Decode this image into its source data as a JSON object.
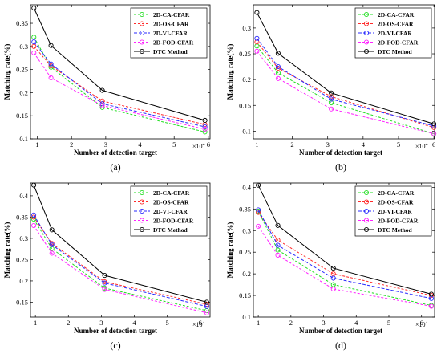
{
  "chart_data": [
    {
      "type": "line",
      "panel_label": "(a)",
      "xlabel": "Number of detection target",
      "ylabel": "Matching rate(%)",
      "x_multiplier": "×10",
      "x_multiplier_exp": "4",
      "xlim": [
        0.8,
        6.05
      ],
      "ylim": [
        0.1,
        0.39
      ],
      "xticks": [
        1,
        2,
        3,
        4,
        5,
        6
      ],
      "yticks": [
        0.1,
        0.15,
        0.2,
        0.25,
        0.3,
        0.35
      ],
      "ytick_labels": [
        "0.1",
        "0.15",
        "0.2",
        "0.25",
        "0.3",
        "0.35"
      ],
      "legend_position": "top-right",
      "series": [
        {
          "name": "2D-CA-CFAR",
          "color": "#22dd22",
          "dash": "3,2",
          "x": [
            0.9,
            1.4,
            2.9,
            5.9
          ],
          "y": [
            0.32,
            0.255,
            0.168,
            0.115
          ]
        },
        {
          "name": "2D-OS-CFAR",
          "color": "#ff2a2a",
          "dash": "3,2",
          "x": [
            0.9,
            1.4,
            2.9,
            5.9
          ],
          "y": [
            0.3,
            0.258,
            0.182,
            0.131
          ]
        },
        {
          "name": "2D-VI-CFAR",
          "color": "#2a2aff",
          "dash": "4,2",
          "x": [
            0.9,
            1.4,
            2.9,
            5.9
          ],
          "y": [
            0.31,
            0.262,
            0.176,
            0.126
          ]
        },
        {
          "name": "2D-FOD-CFAR",
          "color": "#ff22ff",
          "dash": "3,2",
          "x": [
            0.9,
            1.4,
            2.9,
            5.9
          ],
          "y": [
            0.286,
            0.232,
            0.172,
            0.121
          ]
        },
        {
          "name": "DTC Method",
          "color": "#000000",
          "dash": "",
          "x": [
            0.9,
            1.4,
            2.9,
            5.9
          ],
          "y": [
            0.383,
            0.302,
            0.205,
            0.14
          ]
        }
      ]
    },
    {
      "type": "line",
      "panel_label": "(b)",
      "xlabel": "Number of detection target",
      "ylabel": "Matching rate(%)",
      "x_multiplier": "×10",
      "x_multiplier_exp": "4",
      "xlim": [
        0.9,
        6.02
      ],
      "ylim": [
        0.085,
        0.345
      ],
      "xticks": [
        1,
        2,
        3,
        4,
        5,
        6
      ],
      "yticks": [
        0.1,
        0.15,
        0.2,
        0.25,
        0.3
      ],
      "ytick_labels": [
        "0.1",
        "0.15",
        "0.2",
        "0.25",
        "0.3"
      ],
      "legend_position": "top-right",
      "series": [
        {
          "name": "2D-CA-CFAR",
          "color": "#22dd22",
          "dash": "3,2",
          "x": [
            1.0,
            1.6,
            3.1,
            6.0
          ],
          "y": [
            0.265,
            0.213,
            0.155,
            0.095
          ]
        },
        {
          "name": "2D-OS-CFAR",
          "color": "#ff2a2a",
          "dash": "3,2",
          "x": [
            1.0,
            1.6,
            3.1,
            6.0
          ],
          "y": [
            0.273,
            0.222,
            0.167,
            0.107
          ]
        },
        {
          "name": "2D-VI-CFAR",
          "color": "#2a2aff",
          "dash": "4,2",
          "x": [
            1.0,
            1.6,
            3.1,
            6.0
          ],
          "y": [
            0.28,
            0.225,
            0.162,
            0.11
          ]
        },
        {
          "name": "2D-FOD-CFAR",
          "color": "#ff22ff",
          "dash": "3,2",
          "x": [
            1.0,
            1.6,
            3.1,
            6.0
          ],
          "y": [
            0.255,
            0.202,
            0.143,
            0.095
          ]
        },
        {
          "name": "DTC Method",
          "color": "#000000",
          "dash": "",
          "x": [
            1.0,
            1.6,
            3.1,
            6.0
          ],
          "y": [
            0.33,
            0.251,
            0.174,
            0.114
          ]
        }
      ]
    },
    {
      "type": "line",
      "panel_label": "(c)",
      "xlabel": "Number of detection target",
      "ylabel": "Matching rate(%)",
      "x_multiplier": "×10",
      "x_multiplier_exp": "4",
      "xlim": [
        0.85,
        6.3
      ],
      "ylim": [
        0.115,
        0.43
      ],
      "xticks": [
        1,
        2,
        3,
        4,
        5,
        6
      ],
      "yticks": [
        0.15,
        0.2,
        0.25,
        0.3,
        0.35,
        0.4
      ],
      "ytick_labels": [
        "0.15",
        "0.2",
        "0.25",
        "0.3",
        "0.35",
        "0.4"
      ],
      "legend_position": "top-right",
      "series": [
        {
          "name": "2D-CA-CFAR",
          "color": "#22dd22",
          "dash": "3,2",
          "x": [
            0.95,
            1.5,
            3.1,
            6.2
          ],
          "y": [
            0.345,
            0.276,
            0.183,
            0.13
          ]
        },
        {
          "name": "2D-OS-CFAR",
          "color": "#ff2a2a",
          "dash": "3,2",
          "x": [
            0.95,
            1.5,
            3.1,
            6.2
          ],
          "y": [
            0.35,
            0.288,
            0.198,
            0.145
          ]
        },
        {
          "name": "2D-VI-CFAR",
          "color": "#2a2aff",
          "dash": "4,2",
          "x": [
            0.95,
            1.5,
            3.1,
            6.2
          ],
          "y": [
            0.355,
            0.285,
            0.195,
            0.14
          ]
        },
        {
          "name": "2D-FOD-CFAR",
          "color": "#ff22ff",
          "dash": "3,2",
          "x": [
            0.95,
            1.5,
            3.1,
            6.2
          ],
          "y": [
            0.33,
            0.265,
            0.18,
            0.125
          ]
        },
        {
          "name": "DTC Method",
          "color": "#000000",
          "dash": "",
          "x": [
            0.95,
            1.5,
            3.1,
            6.2
          ],
          "y": [
            0.425,
            0.32,
            0.213,
            0.15
          ]
        }
      ]
    },
    {
      "type": "line",
      "panel_label": "(d)",
      "xlabel": "Number of detection target",
      "ylabel": "Matching rate(%)",
      "x_multiplier": "×10",
      "x_multiplier_exp": "4",
      "xlim": [
        0.85,
        6.4
      ],
      "ylim": [
        0.1,
        0.41
      ],
      "xticks": [
        1,
        2,
        3,
        4,
        5,
        6
      ],
      "yticks": [
        0.1,
        0.15,
        0.2,
        0.25,
        0.3,
        0.35,
        0.4
      ],
      "ytick_labels": [
        "0.1",
        "0.15",
        "0.2",
        "0.25",
        "0.3",
        "0.35",
        "0.4"
      ],
      "legend_position": "top-right",
      "series": [
        {
          "name": "2D-CA-CFAR",
          "color": "#22dd22",
          "dash": "3,2",
          "x": [
            1.0,
            1.6,
            3.3,
            6.3
          ],
          "y": [
            0.345,
            0.255,
            0.175,
            0.127
          ]
        },
        {
          "name": "2D-OS-CFAR",
          "color": "#ff2a2a",
          "dash": "3,2",
          "x": [
            1.0,
            1.6,
            3.3,
            6.3
          ],
          "y": [
            0.342,
            0.278,
            0.2,
            0.15
          ]
        },
        {
          "name": "2D-VI-CFAR",
          "color": "#2a2aff",
          "dash": "4,2",
          "x": [
            1.0,
            1.6,
            3.3,
            6.3
          ],
          "y": [
            0.348,
            0.266,
            0.19,
            0.143
          ]
        },
        {
          "name": "2D-FOD-CFAR",
          "color": "#ff22ff",
          "dash": "3,2",
          "x": [
            1.0,
            1.6,
            3.3,
            6.3
          ],
          "y": [
            0.31,
            0.243,
            0.165,
            0.125
          ]
        },
        {
          "name": "DTC Method",
          "color": "#000000",
          "dash": "",
          "x": [
            1.0,
            1.6,
            3.3,
            6.3
          ],
          "y": [
            0.405,
            0.312,
            0.213,
            0.153
          ]
        }
      ]
    }
  ]
}
